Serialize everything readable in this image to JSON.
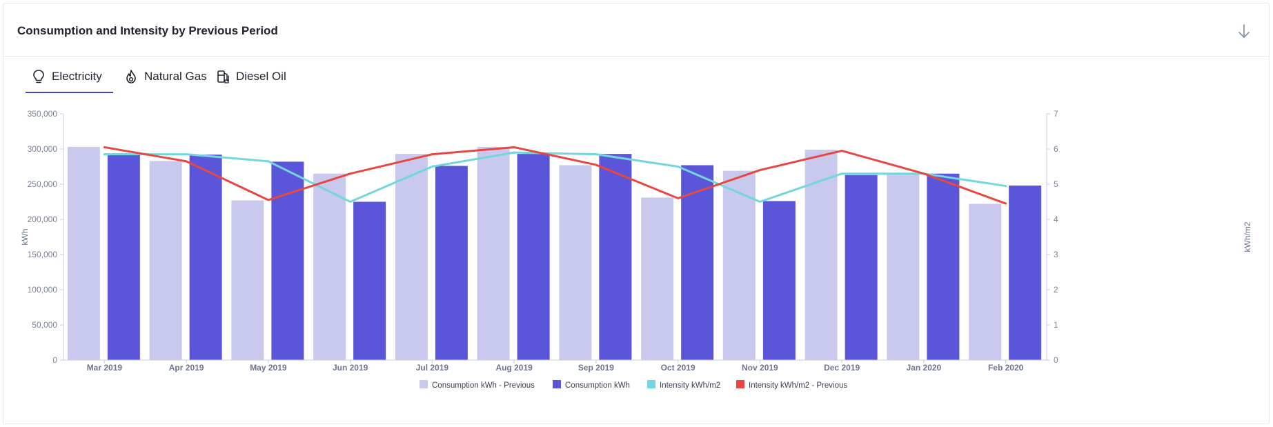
{
  "card": {
    "title": "Consumption and Intensity by Previous Period",
    "download_icon": "arrow-down-icon"
  },
  "tabs": [
    {
      "label": "Electricity",
      "icon": "lightbulb-icon",
      "active": true
    },
    {
      "label": "Natural Gas",
      "icon": "flame-icon",
      "active": false
    },
    {
      "label": "Diesel Oil",
      "icon": "fuel-pump-icon",
      "active": false
    }
  ],
  "colors": {
    "accent": "#3b46d9",
    "consumption_previous": "#c8c9ec",
    "consumption": "#5b55d9",
    "intensity": "#72d6dc",
    "intensity_previous": "#e8463f"
  },
  "chart_data": {
    "type": "bar",
    "categories": [
      "Mar 2019",
      "Apr 2019",
      "May 2019",
      "Jun 2019",
      "Jul 2019",
      "Aug 2019",
      "Sep 2019",
      "Oct 2019",
      "Nov 2019",
      "Dec 2019",
      "Jan 2020",
      "Feb 2020"
    ],
    "ylabel": "kWh",
    "y2label": "kWh/m2",
    "ylim": [
      0,
      350000
    ],
    "y2lim": [
      0,
      7
    ],
    "yticks": [
      "0",
      "50,000",
      "100,000",
      "150,000",
      "200,000",
      "250,000",
      "300,000",
      "350,000"
    ],
    "y2ticks": [
      "0",
      "1",
      "2",
      "3",
      "4",
      "5",
      "6",
      "7"
    ],
    "legend_position": "bottom",
    "series": [
      {
        "name": "Consumption kWh - Previous",
        "type": "bar",
        "axis": "left",
        "values": [
          303000,
          283000,
          227000,
          265000,
          293000,
          303000,
          277000,
          231000,
          269000,
          299000,
          266000,
          222000
        ]
      },
      {
        "name": "Consumption kWh",
        "type": "bar",
        "axis": "left",
        "values": [
          292000,
          292000,
          282000,
          225000,
          276000,
          293000,
          293000,
          277000,
          226000,
          263000,
          265000,
          248000
        ]
      },
      {
        "name": "Intensity kWh/m2",
        "type": "line",
        "axis": "right",
        "values": [
          5.85,
          5.85,
          5.65,
          4.5,
          5.5,
          5.9,
          5.85,
          5.5,
          4.5,
          5.3,
          5.3,
          4.95
        ]
      },
      {
        "name": "Intensity kWh/m2 - Previous",
        "type": "line",
        "axis": "right",
        "values": [
          6.05,
          5.65,
          4.55,
          5.3,
          5.85,
          6.05,
          5.55,
          4.6,
          5.4,
          5.95,
          5.3,
          4.45
        ]
      }
    ]
  }
}
